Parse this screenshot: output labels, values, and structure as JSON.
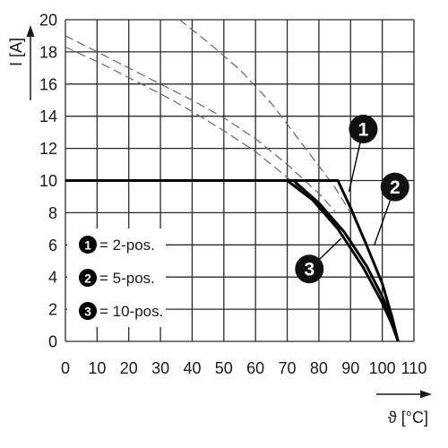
{
  "chart_data": {
    "type": "line",
    "xlabel": "ϑ [°C]",
    "ylabel": "I [A]",
    "xlim": [
      0,
      110
    ],
    "ylim": [
      0,
      20
    ],
    "x_ticks": [
      "0",
      "10",
      "20",
      "30",
      "40",
      "50",
      "60",
      "70",
      "80",
      "90",
      "100",
      "110"
    ],
    "y_ticks": [
      "0",
      "2",
      "4",
      "6",
      "8",
      "10",
      "12",
      "14",
      "16",
      "18",
      "20"
    ],
    "grid": true,
    "legend_position": "bottom-left",
    "legend": [
      {
        "number": "1",
        "label": "= 2-pos."
      },
      {
        "number": "2",
        "label": "= 5-pos."
      },
      {
        "number": "3",
        "label": "= 10-pos."
      }
    ],
    "series": [
      {
        "number": "1",
        "style": "solid",
        "x": [
          0,
          86,
          90,
          95,
          100,
          103,
          105
        ],
        "y": [
          10,
          10,
          8.3,
          6.0,
          3.6,
          1.6,
          0
        ]
      },
      {
        "number": "2",
        "style": "solid",
        "x": [
          0,
          72,
          80,
          88,
          95,
          100,
          103,
          105
        ],
        "y": [
          10,
          10,
          8.6,
          6.8,
          4.7,
          2.8,
          1.4,
          0
        ]
      },
      {
        "number": "3",
        "style": "solid",
        "x": [
          0,
          70,
          78,
          86,
          94,
          100,
          103,
          105
        ],
        "y": [
          10,
          10,
          8.8,
          7.0,
          4.6,
          2.4,
          1.1,
          0
        ]
      },
      {
        "number": "1",
        "style": "dashed",
        "x": [
          36,
          45,
          55,
          65,
          75,
          85,
          90
        ],
        "y": [
          20,
          18.6,
          16.9,
          14.8,
          12.2,
          9.6,
          8.0
        ]
      },
      {
        "number": "2",
        "style": "dashed",
        "x": [
          0,
          10,
          20,
          30,
          40,
          50,
          60,
          70,
          80,
          85
        ],
        "y": [
          19.0,
          18.0,
          17.0,
          16.0,
          15.0,
          13.9,
          12.6,
          11.0,
          9.2,
          8.1
        ]
      },
      {
        "number": "3",
        "style": "dashed",
        "x": [
          0,
          10,
          20,
          30,
          40,
          50,
          60,
          70,
          80
        ],
        "y": [
          18.3,
          17.4,
          16.4,
          15.4,
          14.3,
          13.1,
          11.8,
          10.2,
          8.5
        ]
      }
    ],
    "callouts": [
      {
        "number": "1",
        "x": 94,
        "y": 13.2,
        "leader_to_x": 89.5,
        "leader_to_y": 9.3
      },
      {
        "number": "2",
        "x": 104,
        "y": 9.6,
        "leader_to_x": 97.5,
        "leader_to_y": 6.0
      },
      {
        "number": "3",
        "x": 77,
        "y": 4.5,
        "leader_to_x": 87,
        "leader_to_y": 6.4
      }
    ]
  }
}
